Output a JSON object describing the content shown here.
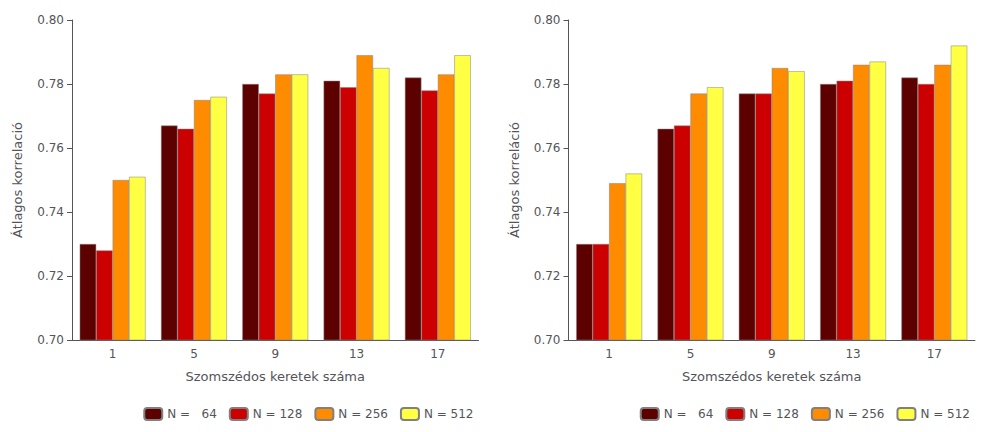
{
  "chart_data": [
    {
      "type": "bar",
      "xlabel": "Szomszédos keretek száma",
      "ylabel": "Átlagos korrelació",
      "categories": [
        "1",
        "5",
        "9",
        "13",
        "17"
      ],
      "series": [
        {
          "name": "N =   64",
          "color": "#5C0000",
          "values": [
            0.73,
            0.767,
            0.78,
            0.781,
            0.782
          ]
        },
        {
          "name": "N = 128",
          "color": "#CC0000",
          "values": [
            0.728,
            0.766,
            0.777,
            0.779,
            0.778
          ]
        },
        {
          "name": "N = 256",
          "color": "#FF8C00",
          "values": [
            0.75,
            0.775,
            0.783,
            0.789,
            0.783
          ]
        },
        {
          "name": "N = 512",
          "color": "#FFFF44",
          "values": [
            0.751,
            0.776,
            0.783,
            0.785,
            0.789
          ]
        }
      ],
      "ylim": [
        0.7,
        0.8
      ],
      "yticks": [
        {
          "value": 0.7,
          "label": "0.70"
        },
        0.72,
        0.74,
        0.76,
        0.78,
        {
          "value": 0.8,
          "label": "0.80"
        }
      ],
      "grid": false,
      "legend": "lower right"
    },
    {
      "type": "bar",
      "xlabel": "Szomszédos keretek száma",
      "ylabel": "Átlagos korreláció",
      "categories": [
        "1",
        "5",
        "9",
        "13",
        "17"
      ],
      "series": [
        {
          "name": "N =   64",
          "color": "#5C0000",
          "values": [
            0.73,
            0.766,
            0.777,
            0.78,
            0.782
          ]
        },
        {
          "name": "N = 128",
          "color": "#CC0000",
          "values": [
            0.73,
            0.767,
            0.777,
            0.781,
            0.78
          ]
        },
        {
          "name": "N = 256",
          "color": "#FF8C00",
          "values": [
            0.749,
            0.777,
            0.785,
            0.786,
            0.786
          ]
        },
        {
          "name": "N = 512",
          "color": "#FFFF44",
          "values": [
            0.752,
            0.779,
            0.784,
            0.787,
            0.792
          ]
        }
      ],
      "ylim": [
        0.7,
        0.8
      ],
      "yticks": [
        {
          "value": 0.7,
          "label": "0.70"
        },
        0.72,
        0.74,
        0.76,
        0.78,
        {
          "value": 0.8,
          "label": "0.80"
        }
      ],
      "grid": false,
      "legend": "lower right"
    }
  ]
}
